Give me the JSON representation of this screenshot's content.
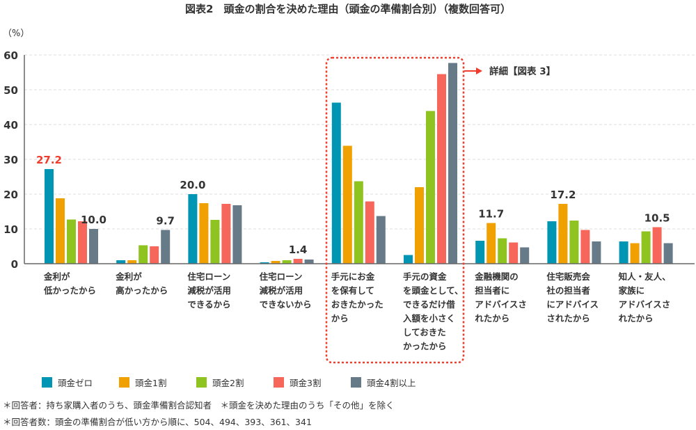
{
  "chart_data": {
    "type": "bar",
    "title": "図表2　頭金の割合を決めた理由（頭金の準備割合別）（複数回答可）",
    "ylabel": "（%）",
    "ylim": [
      0,
      60
    ],
    "yticks": [
      "0",
      "10",
      "20",
      "30",
      "40",
      "50",
      "60"
    ],
    "grid": true,
    "legend_position": "bottom",
    "categories": [
      [
        "金利が",
        "低かったから"
      ],
      [
        "金利が",
        "高かったから"
      ],
      [
        "住宅ローン",
        "減税が活用",
        "できるから"
      ],
      [
        "住宅ローン",
        "減税が活用",
        "できないから"
      ],
      [
        "手元にお金",
        "を保有して",
        "おきたかった",
        "から"
      ],
      [
        "手元の資金",
        "を頭金として、",
        "できるだけ借",
        "入額を小さく",
        "しておきた",
        "かったから"
      ],
      [
        "金融機関の",
        "担当者に",
        "アドバイスさ",
        "れたから"
      ],
      [
        "住宅販売会",
        "社の担当者",
        "にアドバイス",
        "されたから"
      ],
      [
        "知人・友人、",
        "家族に",
        "アドバイスさ",
        "れたから"
      ]
    ],
    "series": [
      {
        "name": "頭金ゼロ",
        "color": "#0095b3",
        "values": [
          27.2,
          1.0,
          20.0,
          0.4,
          46.3,
          2.5,
          6.6,
          12.2,
          6.4
        ]
      },
      {
        "name": "頭金1割",
        "color": "#f0a000",
        "values": [
          18.8,
          1.0,
          17.4,
          0.8,
          33.9,
          22.0,
          11.7,
          17.2,
          5.9
        ]
      },
      {
        "name": "頭金2割",
        "color": "#8fc31f",
        "values": [
          12.7,
          5.3,
          12.6,
          1.0,
          23.7,
          43.9,
          7.3,
          12.4,
          9.3
        ]
      },
      {
        "name": "頭金3割",
        "color": "#f6665a",
        "values": [
          12.2,
          5.0,
          17.2,
          1.4,
          17.9,
          54.5,
          6.1,
          9.7,
          10.5
        ]
      },
      {
        "name": "頭金4割以上",
        "color": "#667a88",
        "values": [
          10.0,
          9.7,
          16.8,
          1.2,
          13.7,
          57.7,
          4.7,
          6.4,
          5.9
        ]
      }
    ],
    "data_labels": [
      {
        "category": 0,
        "series": 0,
        "text": "27.2",
        "color": "#f03c2d"
      },
      {
        "category": 0,
        "series": 4,
        "text": "10.0",
        "color": "#333333"
      },
      {
        "category": 1,
        "series": 4,
        "text": "9.7",
        "color": "#333333"
      },
      {
        "category": 2,
        "series": 0,
        "text": "20.0",
        "color": "#333333"
      },
      {
        "category": 3,
        "series": 3,
        "text": "1.4",
        "color": "#333333"
      },
      {
        "category": 6,
        "series": 1,
        "text": "11.7",
        "color": "#333333"
      },
      {
        "category": 7,
        "series": 1,
        "text": "17.2",
        "color": "#333333"
      },
      {
        "category": 8,
        "series": 3,
        "text": "10.5",
        "color": "#333333"
      }
    ],
    "highlight": {
      "categories": [
        4,
        5
      ],
      "color": "#f03c2d",
      "annotation": "詳細【図表 3】"
    }
  },
  "footnotes": [
    "＊回答者：持ち家購入者のうち、頭金準備割合認知者　＊頭金を決めた理由のうち「その他」を除く",
    "＊回答者数：頭金の準備割合が低い方から順に、504、494、393、361、341"
  ]
}
